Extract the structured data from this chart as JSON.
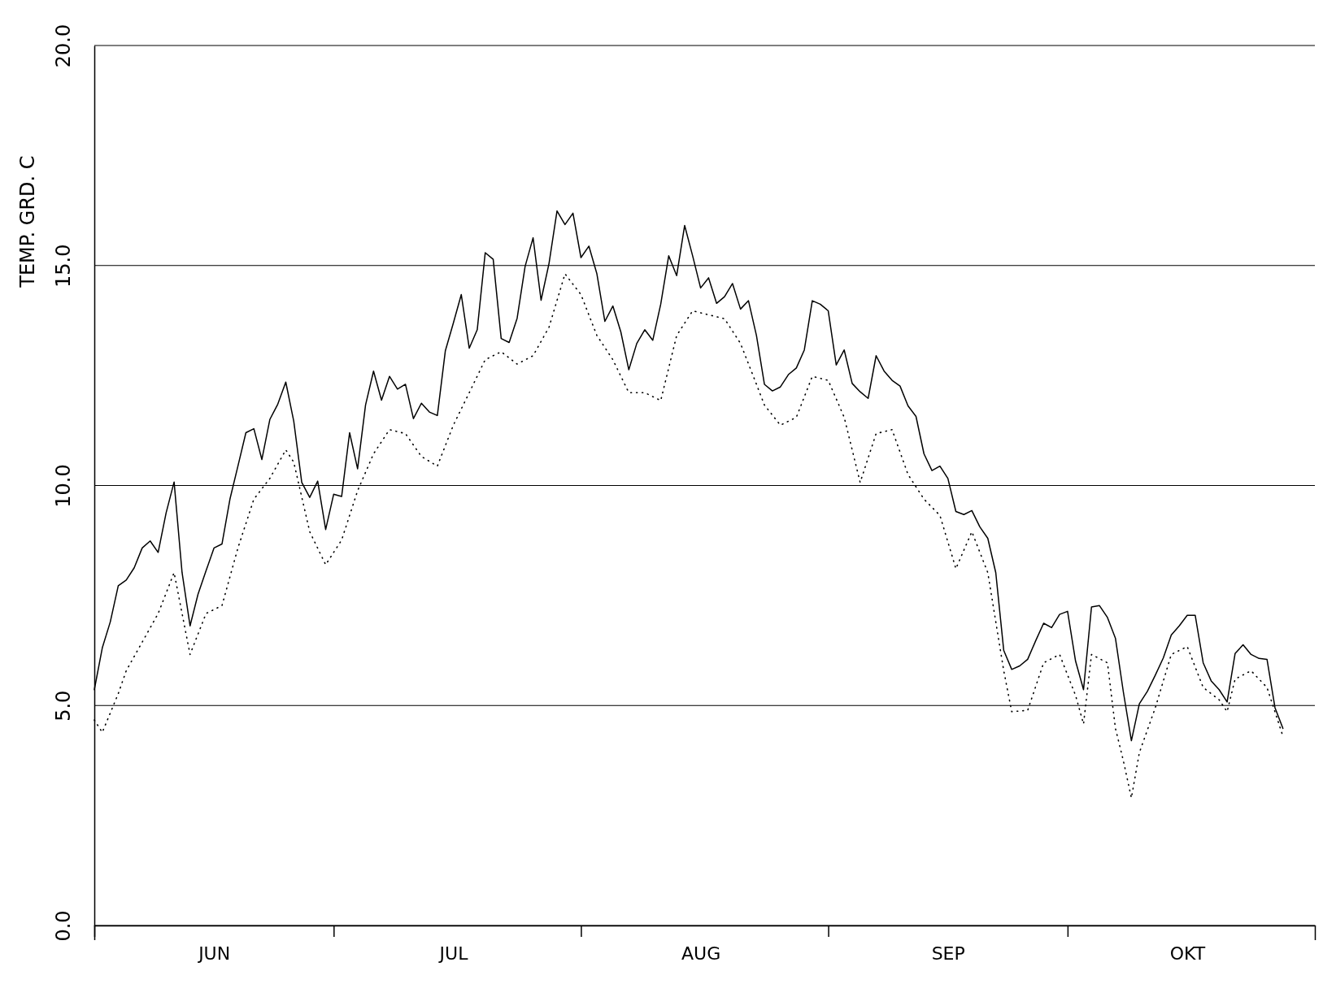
{
  "chart_data": {
    "type": "line",
    "ylabel": "TEMP. GRD. C",
    "xlim": [
      "--06-01",
      "--11-01"
    ],
    "ylim": [
      0,
      20
    ],
    "xticks": [
      {
        "value": "--06-01",
        "label": null
      },
      {
        "value": "--06-16",
        "label": "JUN"
      },
      {
        "value": "--07-01",
        "label": null
      },
      {
        "value": "--07-16",
        "label": "JUL"
      },
      {
        "value": "--08-01",
        "label": null
      },
      {
        "value": "--08-16",
        "label": "AUG"
      },
      {
        "value": "--09-01",
        "label": null
      },
      {
        "value": "--09-16",
        "label": "SEP"
      },
      {
        "value": "--10-01",
        "label": null
      },
      {
        "value": "--10-16",
        "label": "OKT"
      }
    ],
    "yticks": [
      {
        "value": 0,
        "label": "0.0"
      },
      {
        "value": 5,
        "label": "5.0"
      },
      {
        "value": 10,
        "label": "10.0"
      },
      {
        "value": 15,
        "label": "15.0"
      },
      {
        "value": 20,
        "label": "20.0"
      }
    ],
    "grid": "y",
    "marker": "none",
    "series": [
      {
        "color": "#000000",
        "line_style": "solid",
        "x": [
          "--06-01",
          "--06-02",
          "--06-03",
          "--06-04",
          "--06-05",
          "--06-06",
          "--06-07",
          "--06-08",
          "--06-09",
          "--06-10",
          "--06-11",
          "--06-12",
          "--06-13",
          "--06-14",
          "--06-15",
          "--06-16",
          "--06-17",
          "--06-18",
          "--06-19",
          "--06-20",
          "--06-21",
          "--06-22",
          "--06-23",
          "--06-24",
          "--06-25",
          "--06-26",
          "--06-27",
          "--06-28",
          "--06-29",
          "--06-30",
          "--07-01",
          "--07-02",
          "--07-03",
          "--07-04",
          "--07-05",
          "--07-06",
          "--07-07",
          "--07-08",
          "--07-09",
          "--07-10",
          "--07-11",
          "--07-12",
          "--07-13",
          "--07-14",
          "--07-15",
          "--07-16",
          "--07-17",
          "--07-18",
          "--07-19",
          "--07-20",
          "--07-21",
          "--07-22",
          "--07-23",
          "--07-24",
          "--07-25",
          "--07-26",
          "--07-27",
          "--07-28",
          "--07-29",
          "--07-30",
          "--07-31",
          "--08-01",
          "--08-02",
          "--08-03",
          "--08-04",
          "--08-05",
          "--08-06",
          "--08-07",
          "--08-08",
          "--08-09",
          "--08-10",
          "--08-11",
          "--08-12",
          "--08-13",
          "--08-14",
          "--08-15",
          "--08-16",
          "--08-17",
          "--08-18",
          "--08-19",
          "--08-20",
          "--08-21",
          "--08-22",
          "--08-23",
          "--08-24",
          "--08-25",
          "--08-26",
          "--08-27",
          "--08-28",
          "--08-29",
          "--08-30",
          "--08-31",
          "--09-01",
          "--09-02",
          "--09-03",
          "--09-04",
          "--09-05",
          "--09-06",
          "--09-07",
          "--09-08",
          "--09-09",
          "--09-10",
          "--09-11",
          "--09-12",
          "--09-13",
          "--09-14",
          "--09-15",
          "--09-16",
          "--09-17",
          "--09-18",
          "--09-19",
          "--09-20",
          "--09-21",
          "--09-22",
          "--09-23",
          "--09-24",
          "--09-25",
          "--09-26",
          "--09-27",
          "--09-28",
          "--09-29",
          "--09-30",
          "--10-01",
          "--10-02",
          "--10-03",
          "--10-04",
          "--10-05",
          "--10-06",
          "--10-07",
          "--10-08",
          "--10-09",
          "--10-10",
          "--10-11",
          "--10-12",
          "--10-13",
          "--10-14",
          "--10-15",
          "--10-16",
          "--10-17",
          "--10-18",
          "--10-19",
          "--10-20",
          "--10-21",
          "--10-22",
          "--10-23",
          "--10-24",
          "--10-25",
          "--10-26",
          "--10-27",
          "--10-28"
        ],
        "values": [
          5.36,
          6.31,
          6.9,
          7.72,
          7.85,
          8.13,
          8.58,
          8.74,
          8.48,
          9.38,
          10.08,
          8.02,
          6.81,
          7.53,
          8.06,
          8.58,
          8.67,
          9.69,
          10.44,
          11.2,
          11.29,
          10.59,
          11.5,
          11.85,
          12.35,
          11.46,
          10.07,
          9.73,
          10.1,
          9.0,
          9.8,
          9.75,
          11.2,
          10.38,
          11.83,
          12.6,
          11.94,
          12.48,
          12.19,
          12.3,
          11.52,
          11.87,
          11.67,
          11.59,
          13.06,
          13.69,
          14.34,
          13.12,
          13.54,
          15.29,
          15.14,
          13.34,
          13.25,
          13.8,
          14.98,
          15.63,
          14.21,
          15.05,
          16.24,
          15.93,
          16.19,
          15.18,
          15.44,
          14.81,
          13.73,
          14.08,
          13.49,
          12.63,
          13.23,
          13.54,
          13.3,
          14.12,
          15.22,
          14.77,
          15.91,
          15.22,
          14.49,
          14.72,
          14.14,
          14.29,
          14.59,
          14.01,
          14.2,
          13.41,
          12.3,
          12.15,
          12.24,
          12.52,
          12.67,
          13.08,
          14.2,
          14.12,
          13.97,
          12.74,
          13.08,
          12.32,
          12.13,
          11.98,
          12.95,
          12.6,
          12.39,
          12.26,
          11.81,
          11.57,
          10.72,
          10.34,
          10.44,
          10.16,
          9.41,
          9.34,
          9.43,
          9.06,
          8.8,
          8.02,
          6.25,
          5.82,
          5.9,
          6.05,
          6.47,
          6.87,
          6.77,
          7.07,
          7.14,
          6.01,
          5.36,
          7.24,
          7.27,
          7.0,
          6.53,
          5.3,
          4.2,
          5.04,
          5.32,
          5.69,
          6.08,
          6.6,
          6.81,
          7.05,
          7.05,
          5.97,
          5.56,
          5.36,
          5.08,
          6.18,
          6.38,
          6.16,
          6.07,
          6.05,
          4.95,
          4.48
        ]
      },
      {
        "color": "#000000",
        "line_style": "dotted",
        "x": [
          "--06-01",
          "--06-02",
          "--06-04",
          "--06-05",
          "--06-07",
          "--06-09",
          "--06-11",
          "--06-12",
          "--06-13",
          "--06-15",
          "--06-17",
          "--06-19",
          "--06-21",
          "--06-23",
          "--06-25",
          "--06-26",
          "--06-28",
          "--06-30",
          "--07-02",
          "--07-04",
          "--07-06",
          "--07-08",
          "--07-10",
          "--07-12",
          "--07-14",
          "--07-16",
          "--07-18",
          "--07-20",
          "--07-22",
          "--07-24",
          "--07-26",
          "--07-28",
          "--07-30",
          "--08-01",
          "--08-03",
          "--08-05",
          "--08-07",
          "--08-09",
          "--08-11",
          "--08-13",
          "--08-15",
          "--08-17",
          "--08-19",
          "--08-21",
          "--08-23",
          "--08-24",
          "--08-26",
          "--08-28",
          "--08-30",
          "--09-01",
          "--09-03",
          "--09-05",
          "--09-07",
          "--09-09",
          "--09-11",
          "--09-13",
          "--09-15",
          "--09-17",
          "--09-19",
          "--09-21",
          "--09-23",
          "--09-24",
          "--09-26",
          "--09-28",
          "--09-30",
          "--10-02",
          "--10-03",
          "--10-04",
          "--10-06",
          "--10-07",
          "--10-08",
          "--10-09",
          "--10-10",
          "--10-12",
          "--10-14",
          "--10-16",
          "--10-18",
          "--10-20",
          "--10-21",
          "--10-22",
          "--10-24",
          "--10-26",
          "--10-28"
        ],
        "values": [
          4.67,
          4.39,
          5.27,
          5.79,
          6.44,
          7.09,
          8.02,
          7.09,
          6.16,
          7.09,
          7.27,
          8.58,
          9.69,
          10.16,
          10.81,
          10.53,
          8.95,
          8.2,
          8.76,
          9.88,
          10.72,
          11.27,
          11.18,
          10.66,
          10.44,
          11.37,
          12.11,
          12.86,
          13.04,
          12.76,
          12.95,
          13.6,
          14.81,
          14.34,
          13.41,
          12.86,
          12.11,
          12.11,
          11.93,
          13.41,
          13.97,
          13.88,
          13.79,
          13.23,
          12.3,
          11.83,
          11.37,
          11.55,
          12.48,
          12.39,
          11.55,
          10.07,
          11.18,
          11.27,
          10.25,
          9.69,
          9.32,
          8.11,
          8.95,
          8.02,
          5.79,
          4.86,
          4.89,
          5.97,
          6.16,
          5.23,
          4.58,
          6.16,
          5.97,
          4.48,
          3.74,
          2.9,
          3.93,
          4.95,
          6.16,
          6.34,
          5.41,
          5.13,
          4.86,
          5.6,
          5.79,
          5.41,
          4.3
        ]
      }
    ]
  }
}
